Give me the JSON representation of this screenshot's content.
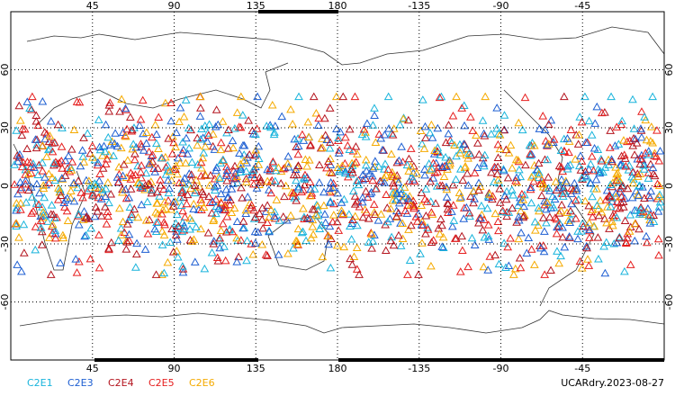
{
  "chart_data": {
    "type": "map",
    "xlim": [
      0,
      360
    ],
    "ylim": [
      -90,
      90
    ],
    "xticks": [
      45,
      90,
      135,
      180,
      {
        "value": 225,
        "label": "-135"
      },
      {
        "value": 270,
        "label": "-90"
      },
      {
        "value": 315,
        "label": "-45"
      }
    ],
    "yticks": [
      -60,
      -30,
      0,
      30,
      60
    ],
    "grid": true,
    "series": [
      {
        "name": "C2E1",
        "color": "#19b4dc"
      },
      {
        "name": "C2E3",
        "color": "#1e5fd2"
      },
      {
        "name": "C2E4",
        "color": "#b4141e"
      },
      {
        "name": "C2E5",
        "color": "#e61e1e"
      },
      {
        "name": "C2E6",
        "color": "#f5aa00"
      }
    ],
    "annotation": "UCARdry.2023-08-27"
  }
}
